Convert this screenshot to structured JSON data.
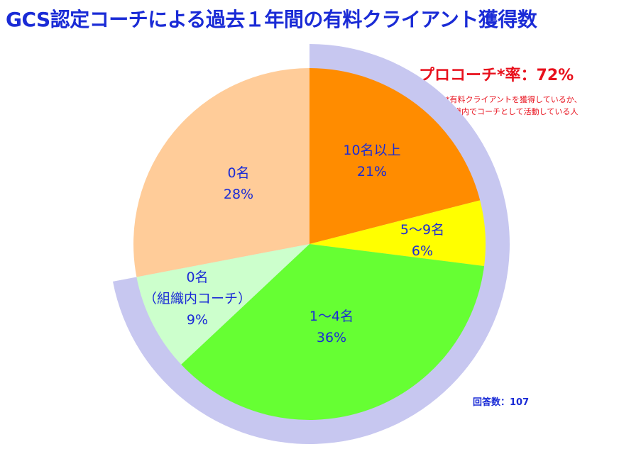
{
  "title": "GCS認定コーチによる過去１年間の有料クライアント獲得数",
  "pro_rate": {
    "label": "プロコーチ*率：72%",
    "value": 72
  },
  "note": {
    "line1": "*有料クライアントを獲得しているか、",
    "line2": "組織内でコーチとして活動している人"
  },
  "respondents": "回答数：107",
  "colors": {
    "ring": "#c7c7f0",
    "title": "#1a2bd6",
    "accent_red": "#e8101c"
  },
  "chart_data": {
    "type": "pie",
    "title": "GCS認定コーチによる過去１年間の有料クライアント獲得数",
    "slices": [
      {
        "name": "10名以上",
        "value": 21,
        "value_label": "21%",
        "color": "#ff8c00"
      },
      {
        "name": "5～9名",
        "value": 6,
        "value_label": "6%",
        "color": "#ffff00"
      },
      {
        "name": "1～4名",
        "value": 36,
        "value_label": "36%",
        "color": "#66ff33"
      },
      {
        "name": "0名",
        "name_line2": "（組織内コーチ）",
        "value": 9,
        "value_label": "9%",
        "color": "#ccffcc"
      },
      {
        "name": "0名",
        "value": 28,
        "value_label": "28%",
        "color": "#ffcc99"
      }
    ],
    "highlight_ring": {
      "label": "プロコーチ*率：72%",
      "value": 72,
      "color": "#c7c7f0"
    },
    "start_angle": "12 o'clock",
    "direction": "clockwise"
  }
}
